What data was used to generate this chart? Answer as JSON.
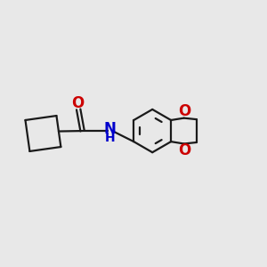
{
  "background_color": "#e8e8e8",
  "bond_color": "#1a1a1a",
  "o_color": "#cc0000",
  "n_color": "#0000cc",
  "line_width": 1.6,
  "font_size": 11,
  "fig_width": 3.0,
  "fig_height": 3.0,
  "dpi": 100,
  "xlim": [
    0,
    10
  ],
  "ylim": [
    0,
    10
  ]
}
